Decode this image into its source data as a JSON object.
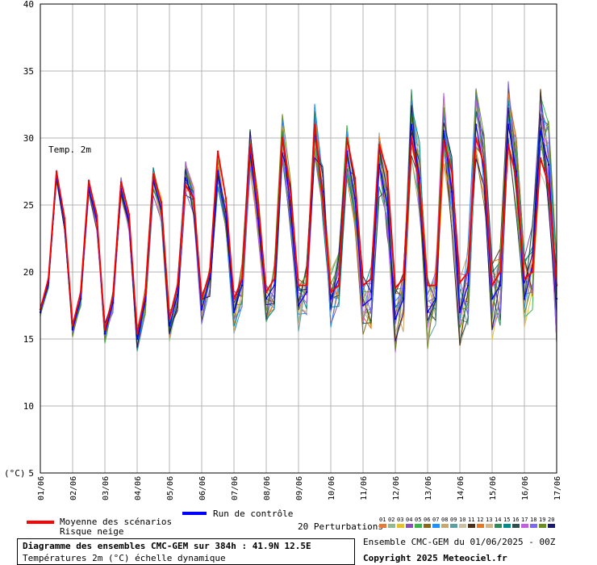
{
  "chart_data": {
    "type": "line",
    "title": "Diagramme des ensembles CMC-GEM sur 384h : 41.9N 12.5E",
    "subtitle": "Températures 2m (°C) échelle dynamique",
    "annotation": "Temp. 2m",
    "ylabel": "(°C)",
    "ylim": [
      5,
      40
    ],
    "yticks": [
      5,
      10,
      15,
      20,
      25,
      30,
      35,
      40
    ],
    "xlabels": [
      "01/06",
      "02/06",
      "03/06",
      "04/06",
      "05/06",
      "06/06",
      "07/06",
      "08/06",
      "09/06",
      "10/06",
      "11/06",
      "12/06",
      "13/06",
      "14/06",
      "15/06",
      "16/06",
      "17/06"
    ],
    "step_hours": 6,
    "grid": true,
    "mean": {
      "name": "Moyenne des scénarios",
      "color": "#ff0000",
      "values": [
        17.2,
        19.5,
        27.5,
        24.0,
        16.0,
        18.5,
        26.8,
        24.2,
        15.7,
        18.2,
        26.7,
        24.3,
        15.4,
        18.3,
        27.3,
        25.2,
        16.5,
        19.0,
        26.5,
        25.5,
        18.0,
        20.0,
        29.0,
        25.5,
        18.0,
        19.5,
        29.5,
        25.0,
        18.5,
        19.5,
        30.0,
        26.0,
        19.0,
        19.0,
        31.0,
        25.5,
        18.5,
        19.0,
        30.0,
        27.0,
        19.0,
        19.5,
        29.5,
        27.5,
        18.8,
        19.5,
        30.0,
        26.5,
        19.0,
        19.0,
        29.8,
        27.5,
        19.2,
        20.0,
        30.0,
        28.0,
        19.0,
        20.0,
        29.5,
        27.0,
        19.5,
        20.0,
        28.5,
        26.5,
        19.0
      ]
    },
    "control": {
      "name": "Run de contrôle",
      "color": "#0000ff",
      "values": [
        17.0,
        19.2,
        27.2,
        23.7,
        15.7,
        18.0,
        26.3,
        23.8,
        15.4,
        17.7,
        26.2,
        23.8,
        15.0,
        17.8,
        26.8,
        24.7,
        16.0,
        18.3,
        27.0,
        25.5,
        17.2,
        19.5,
        27.5,
        24.5,
        17.0,
        19.0,
        29.0,
        24.0,
        18.0,
        19.0,
        30.0,
        25.0,
        17.5,
        18.5,
        30.5,
        26.0,
        18.0,
        19.5,
        29.0,
        25.5,
        17.5,
        18.0,
        28.0,
        25.0,
        16.5,
        18.0,
        31.0,
        27.0,
        17.0,
        18.0,
        30.5,
        26.0,
        17.0,
        19.0,
        31.0,
        27.5,
        18.0,
        19.0,
        31.0,
        27.5,
        18.0,
        20.5,
        30.5,
        28.0,
        18.0
      ]
    },
    "ensemble_label": "20 Perturbations",
    "perturbations": [
      {
        "id": "01",
        "color": "#e07b39"
      },
      {
        "id": "02",
        "color": "#8fbc8f"
      },
      {
        "id": "03",
        "color": "#e6c229"
      },
      {
        "id": "04",
        "color": "#8a4fb8"
      },
      {
        "id": "05",
        "color": "#3cb44b"
      },
      {
        "id": "06",
        "color": "#8b6914"
      },
      {
        "id": "07",
        "color": "#1e90ff"
      },
      {
        "id": "08",
        "color": "#c7a86b"
      },
      {
        "id": "09",
        "color": "#5f9ea0"
      },
      {
        "id": "10",
        "color": "#c9c1a0"
      },
      {
        "id": "11",
        "color": "#4a2f1a"
      },
      {
        "id": "12",
        "color": "#e8771e"
      },
      {
        "id": "13",
        "color": "#d2b48c"
      },
      {
        "id": "14",
        "color": "#2e8b57"
      },
      {
        "id": "15",
        "color": "#008b8b"
      },
      {
        "id": "16",
        "color": "#2f4f4f"
      },
      {
        "id": "17",
        "color": "#c060e0"
      },
      {
        "id": "18",
        "color": "#7b68ee"
      },
      {
        "id": "19",
        "color": "#6b8e23"
      },
      {
        "id": "20",
        "color": "#191970"
      }
    ]
  },
  "legend": {
    "mean_label": "Moyenne des scénarios",
    "snow_label": "Risque neige",
    "control_label": "Run de contrôle",
    "perturbations_label": "20 Perturbations"
  },
  "footer": {
    "title": "Diagramme des ensembles CMC-GEM sur 384h : 41.9N 12.5E",
    "subtitle": "Températures 2m (°C) échelle dynamique",
    "run_info": "Ensemble CMC-GEM du 01/06/2025 - 00Z",
    "copyright": "Copyright 2025 Meteociel.fr"
  }
}
